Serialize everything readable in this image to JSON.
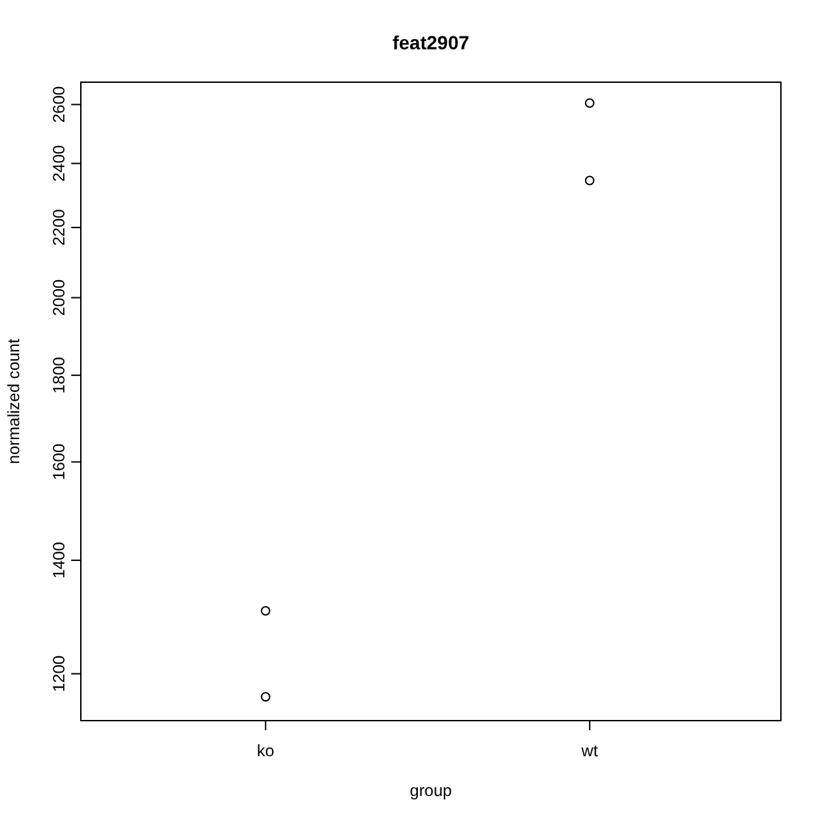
{
  "chart_data": {
    "type": "scatter",
    "title": "feat2907",
    "xlabel": "group",
    "ylabel": "normalized count",
    "categories": [
      "ko",
      "wt"
    ],
    "series": [
      {
        "color": "#000000",
        "x": [
          "ko",
          "ko",
          "wt",
          "wt"
        ],
        "values": [
          1163,
          1307,
          2605,
          2345
        ]
      }
    ],
    "ylim": [
      1126,
      2680
    ],
    "yticks": [
      1200,
      1400,
      1600,
      1800,
      2000,
      2200,
      2400,
      2600
    ],
    "log": "y",
    "marker": "circle",
    "grid": false
  }
}
